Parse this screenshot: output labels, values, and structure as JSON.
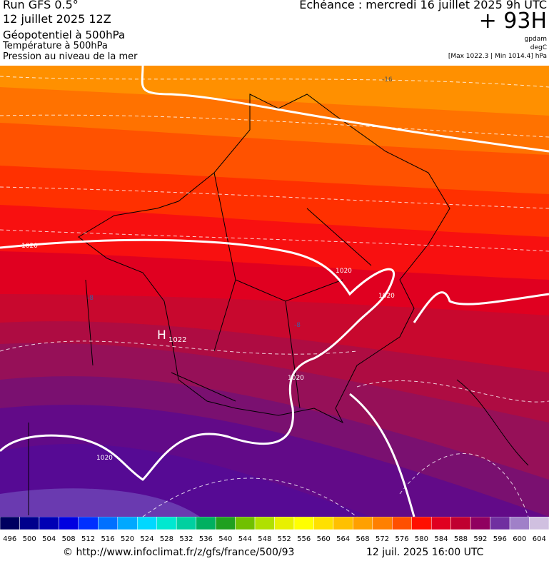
{
  "header": {
    "run": "Run GFS 0.5°",
    "date": "12 juillet 2025 12Z",
    "field1": "Géopotentiel à 500hPa",
    "field2": "Température à 500hPa",
    "field3": "Pression au niveau de la mer",
    "valid": "Echéance : mercredi 16 juillet 2025 9h UTC",
    "lead": "+ 93H",
    "unit1": "gpdam",
    "unit2": "degC",
    "range": "[Max 1022.3 | Min 1014.4] hPa"
  },
  "map": {
    "labels": [
      {
        "text": "-16"
      },
      {
        "text": "1020"
      },
      {
        "text": "1020"
      },
      {
        "text": "1020"
      },
      {
        "text": "1020"
      },
      {
        "text": "1020"
      },
      {
        "text": "-8"
      },
      {
        "text": "-8"
      },
      {
        "text": "H"
      },
      {
        "text": "1022"
      }
    ]
  },
  "legend": {
    "labels": [
      496,
      500,
      504,
      508,
      512,
      516,
      520,
      524,
      528,
      532,
      536,
      540,
      544,
      548,
      552,
      556,
      560,
      564,
      568,
      572,
      576,
      580,
      584,
      588,
      592,
      596,
      600,
      604
    ],
    "colors": [
      "#000060",
      "#00008c",
      "#0000b4",
      "#0000e0",
      "#0030ff",
      "#0070ff",
      "#00a8ff",
      "#00d8ff",
      "#00e8d0",
      "#00d0a0",
      "#00b060",
      "#20a020",
      "#70c000",
      "#b0e000",
      "#e8f000",
      "#ffff00",
      "#ffe000",
      "#ffc000",
      "#ffa000",
      "#ff8000",
      "#ff5000",
      "#ff1000",
      "#e00020",
      "#c00030",
      "#900060",
      "#7030a0",
      "#a080c8",
      "#d0c0e0"
    ]
  },
  "footer": {
    "url": "© http://www.infoclimat.fr/z/gfs/france/500/93",
    "time": "12 juil. 2025 16:00 UTC"
  }
}
